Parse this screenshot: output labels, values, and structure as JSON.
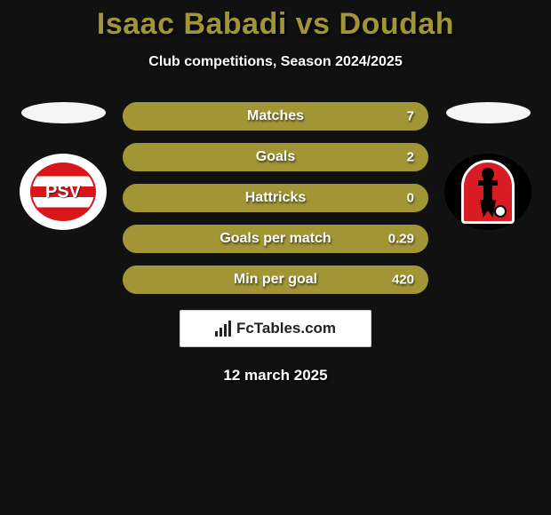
{
  "title": "Isaac Babadi vs Doudah",
  "subtitle": "Club competitions, Season 2024/2025",
  "title_color": "#a29535",
  "bar_color": "#a29535",
  "background_color": "#111111",
  "stats": [
    {
      "label": "Matches",
      "value": "7"
    },
    {
      "label": "Goals",
      "value": "2"
    },
    {
      "label": "Hattricks",
      "value": "0"
    },
    {
      "label": "Goals per match",
      "value": "0.29"
    },
    {
      "label": "Min per goal",
      "value": "420"
    }
  ],
  "left_club": {
    "name": "PSV",
    "text": "PSV"
  },
  "right_club": {
    "name": "Helmond Sport"
  },
  "footer_brand": "FcTables.com",
  "date": "12 march 2025"
}
